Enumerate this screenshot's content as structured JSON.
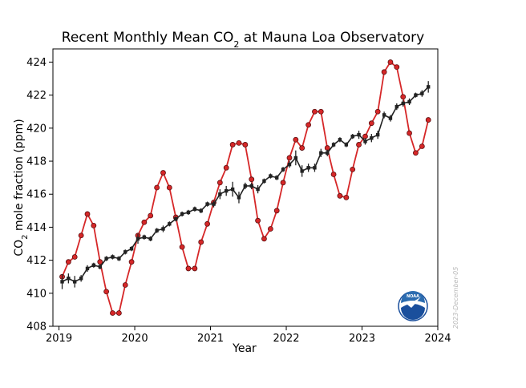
{
  "chart_data": {
    "type": "line",
    "title_main": "Recent Monthly Mean CO",
    "title_sub": "2",
    "title_rest": " at Mauna Loa Observatory",
    "xlabel": "Year",
    "ylabel_main": "CO",
    "ylabel_sub": "2",
    "ylabel_rest": " mole fraction (ppm)",
    "xlim": [
      2018.92,
      2024.0
    ],
    "ylim": [
      408,
      424.8
    ],
    "x_ticks": [
      2019,
      2020,
      2021,
      2022,
      2023,
      2024
    ],
    "y_ticks": [
      408,
      410,
      412,
      414,
      416,
      418,
      420,
      422,
      424
    ],
    "x_tick_labels": [
      "2019",
      "2020",
      "2021",
      "2022",
      "2023",
      "2024"
    ],
    "y_tick_labels": [
      "408",
      "410",
      "412",
      "414",
      "416",
      "418",
      "420",
      "422",
      "424"
    ],
    "grid": false,
    "series": [
      {
        "color": "#d62728",
        "marker": "circle",
        "x": [
          2019.042,
          2019.125,
          2019.208,
          2019.292,
          2019.375,
          2019.458,
          2019.542,
          2019.625,
          2019.708,
          2019.792,
          2019.875,
          2019.958,
          2020.042,
          2020.125,
          2020.208,
          2020.292,
          2020.375,
          2020.458,
          2020.542,
          2020.625,
          2020.708,
          2020.792,
          2020.875,
          2020.958,
          2021.042,
          2021.125,
          2021.208,
          2021.292,
          2021.375,
          2021.458,
          2021.542,
          2021.625,
          2021.708,
          2021.792,
          2021.875,
          2021.958,
          2022.042,
          2022.125,
          2022.208,
          2022.292,
          2022.375,
          2022.458,
          2022.542,
          2022.625,
          2022.708,
          2022.792,
          2022.875,
          2022.958,
          2023.042,
          2023.125,
          2023.208,
          2023.292,
          2023.375,
          2023.458,
          2023.542,
          2023.625,
          2023.708,
          2023.792,
          2023.875
        ],
        "values": [
          411.0,
          411.9,
          412.2,
          413.5,
          414.8,
          414.1,
          411.9,
          410.1,
          408.8,
          408.8,
          410.5,
          411.9,
          413.5,
          414.3,
          414.7,
          416.4,
          417.3,
          416.4,
          414.6,
          412.8,
          411.5,
          411.5,
          413.1,
          414.2,
          415.5,
          416.7,
          417.6,
          419.0,
          419.1,
          419.0,
          416.9,
          414.4,
          413.3,
          413.9,
          415.0,
          416.7,
          418.2,
          419.3,
          418.8,
          420.2,
          421.0,
          421.0,
          418.8,
          417.2,
          415.9,
          415.8,
          417.5,
          419.0,
          419.5,
          420.3,
          421.0,
          423.4,
          424.0,
          423.7,
          421.9,
          419.7,
          418.5,
          418.9,
          420.5
        ]
      },
      {
        "color": "#222222",
        "marker": "square",
        "error_bars": true,
        "x": [
          2019.042,
          2019.125,
          2019.208,
          2019.292,
          2019.375,
          2019.458,
          2019.542,
          2019.625,
          2019.708,
          2019.792,
          2019.875,
          2019.958,
          2020.042,
          2020.125,
          2020.208,
          2020.292,
          2020.375,
          2020.458,
          2020.542,
          2020.625,
          2020.708,
          2020.792,
          2020.875,
          2020.958,
          2021.042,
          2021.125,
          2021.208,
          2021.292,
          2021.375,
          2021.458,
          2021.542,
          2021.625,
          2021.708,
          2021.792,
          2021.875,
          2021.958,
          2022.042,
          2022.125,
          2022.208,
          2022.292,
          2022.375,
          2022.458,
          2022.542,
          2022.625,
          2022.708,
          2022.792,
          2022.875,
          2022.958,
          2023.042,
          2023.125,
          2023.208,
          2023.292,
          2023.375,
          2023.458,
          2023.542,
          2023.625,
          2023.708,
          2023.792,
          2023.875
        ],
        "values": [
          410.7,
          410.9,
          410.7,
          410.9,
          411.5,
          411.7,
          411.6,
          412.1,
          412.2,
          412.1,
          412.5,
          412.7,
          413.3,
          413.4,
          413.3,
          413.8,
          413.9,
          414.2,
          414.5,
          414.8,
          414.9,
          415.1,
          415.0,
          415.4,
          415.4,
          416.0,
          416.2,
          416.3,
          415.8,
          416.5,
          416.5,
          416.3,
          416.8,
          417.1,
          417.0,
          417.5,
          417.8,
          418.2,
          417.4,
          417.6,
          417.6,
          418.5,
          418.5,
          419.0,
          419.3,
          419.0,
          419.5,
          419.6,
          419.2,
          419.4,
          419.6,
          420.8,
          420.6,
          421.3,
          421.5,
          421.6,
          422.0,
          422.1,
          422.5
        ],
        "error": [
          0.45,
          0.3,
          0.35,
          0.2,
          0.2,
          0.15,
          0.15,
          0.15,
          0.15,
          0.15,
          0.15,
          0.15,
          0.3,
          0.15,
          0.15,
          0.15,
          0.2,
          0.15,
          0.15,
          0.15,
          0.15,
          0.15,
          0.15,
          0.15,
          0.2,
          0.3,
          0.3,
          0.45,
          0.35,
          0.2,
          0.2,
          0.25,
          0.15,
          0.15,
          0.15,
          0.15,
          0.2,
          0.45,
          0.35,
          0.25,
          0.25,
          0.25,
          0.2,
          0.15,
          0.15,
          0.15,
          0.15,
          0.25,
          0.2,
          0.25,
          0.25,
          0.2,
          0.2,
          0.2,
          0.2,
          0.2,
          0.15,
          0.2,
          0.35
        ]
      }
    ]
  },
  "logo": {
    "text": "NOAA",
    "colors": {
      "outer": "#ffffff",
      "sky": "#2b6cb0",
      "water": "#1a4f9c",
      "bird": "#ffffff"
    }
  },
  "date_stamp": "2023-December-05"
}
